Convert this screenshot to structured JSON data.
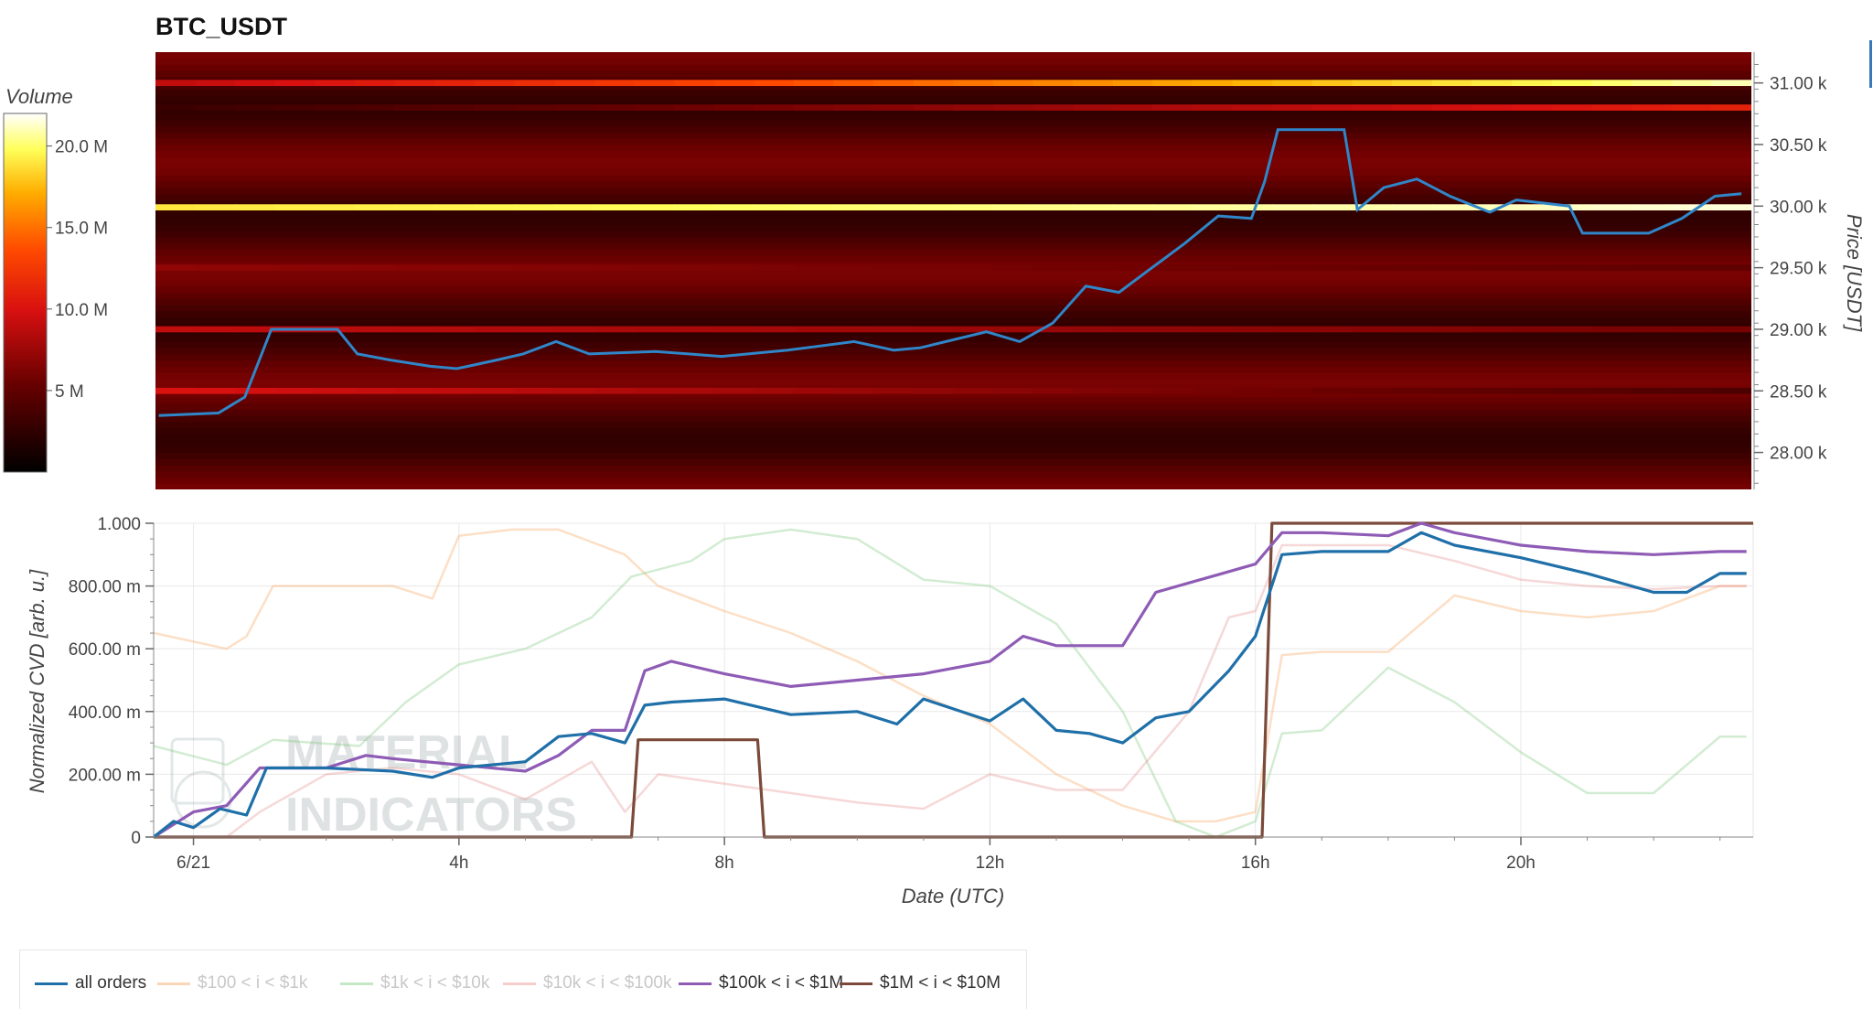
{
  "title": "BTC_USDT",
  "colorbar": {
    "title": "Volume",
    "ticks": [
      {
        "value": 20000000,
        "label": "20.0 M"
      },
      {
        "value": 15000000,
        "label": "15.0 M"
      },
      {
        "value": 10000000,
        "label": "10.0 M"
      },
      {
        "value": 5000000,
        "label": "5 M"
      }
    ],
    "range": [
      0,
      22000000
    ]
  },
  "heatmap_panel": {
    "y_axis_title": "Price [USDT]",
    "y_ticks": [
      {
        "value": 31000,
        "label": "31.00 k"
      },
      {
        "value": 30500,
        "label": "30.50 k"
      },
      {
        "value": 30000,
        "label": "30.00 k"
      },
      {
        "value": 29500,
        "label": "29.50 k"
      },
      {
        "value": 29000,
        "label": "29.00 k"
      },
      {
        "value": 28500,
        "label": "28.50 k"
      },
      {
        "value": 28000,
        "label": "28.00 k"
      }
    ],
    "y_range": [
      27700,
      31250
    ]
  },
  "cvd_panel": {
    "y_axis_title": "Normalized CVD [arb. u.]",
    "x_axis_title": "Date (UTC)",
    "y_ticks": [
      {
        "value": 1.0,
        "label": "1.000"
      },
      {
        "value": 0.8,
        "label": "800.00 m"
      },
      {
        "value": 0.6,
        "label": "600.00 m"
      },
      {
        "value": 0.4,
        "label": "400.00 m"
      },
      {
        "value": 0.2,
        "label": "200.00 m"
      },
      {
        "value": 0.0,
        "label": "0"
      }
    ],
    "x_ticks": [
      {
        "value": 0,
        "label": "6/21"
      },
      {
        "value": 4,
        "label": "4h"
      },
      {
        "value": 8,
        "label": "8h"
      },
      {
        "value": 12,
        "label": "12h"
      },
      {
        "value": 16,
        "label": "16h"
      },
      {
        "value": 20,
        "label": "20h"
      }
    ],
    "watermark_lines": [
      "MATERIAL",
      "INDICATORS"
    ]
  },
  "legend": [
    {
      "label": "all orders",
      "color": "#1f6fa8",
      "muted": false
    },
    {
      "label": "$100 < i < $1k",
      "color": "#f5a25d",
      "muted": true
    },
    {
      "label": "$1k < i < $10k",
      "color": "#7fc97f",
      "muted": true
    },
    {
      "label": "$10k < i < $100k",
      "color": "#e6908f",
      "muted": true
    },
    {
      "label": "$100k < i < $1M",
      "color": "#8e5bb5",
      "muted": false
    },
    {
      "label": "$1M < i < $10M",
      "color": "#7b4a3a",
      "muted": false
    }
  ],
  "chart_data": [
    {
      "type": "heatmap",
      "title": "BTC_USDT",
      "x_range_hours": [
        -0.55,
        23.55
      ],
      "y_range": [
        27700,
        31250
      ],
      "ylabel": "Price [USDT]",
      "colorscale": "black-red-yellow-white",
      "color_label": "Volume",
      "bands": [
        {
          "price": 31000,
          "volume_start": 9000000,
          "volume_end": 21000000
        },
        {
          "price": 29990,
          "volume_start": 19000000,
          "volume_end": 21500000
        },
        {
          "price": 30800,
          "volume_start": 3000000,
          "volume_end": 11000000
        },
        {
          "price": 29000,
          "volume_start": 9000000,
          "volume_end": 6000000
        },
        {
          "price": 28500,
          "volume_start": 10000000,
          "volume_end": 4000000
        },
        {
          "price": 29500,
          "volume_start": 7000000,
          "volume_end": 5000000
        }
      ],
      "price_line": {
        "name": "",
        "x": [
          -0.5,
          0.4,
          0.8,
          1.2,
          2.2,
          2.5,
          3.0,
          3.6,
          4.0,
          4.6,
          5.0,
          5.5,
          6.0,
          7.0,
          8.0,
          9.0,
          10.0,
          10.6,
          11.0,
          12.0,
          12.5,
          13.0,
          13.5,
          14.0,
          14.5,
          15.0,
          15.5,
          16.0,
          16.2,
          16.4,
          17.4,
          17.6,
          18.0,
          18.5,
          19.0,
          19.6,
          20.0,
          20.8,
          21.0,
          22.0,
          22.5,
          23.0,
          23.4
        ],
        "y": [
          28300,
          28320,
          28450,
          29000,
          29000,
          28800,
          28750,
          28700,
          28680,
          28750,
          28800,
          28900,
          28800,
          28820,
          28780,
          28830,
          28900,
          28830,
          28850,
          28980,
          28900,
          29050,
          29350,
          29300,
          29500,
          29700,
          29920,
          29900,
          30200,
          30620,
          30620,
          29970,
          30150,
          30220,
          30080,
          29950,
          30050,
          30000,
          29780,
          29780,
          29900,
          30080,
          30100
        ]
      }
    },
    {
      "type": "line",
      "xlabel": "Date (UTC)",
      "ylabel": "Normalized CVD [arb. u.]",
      "ylim": [
        0,
        1.0
      ],
      "x_unit": "hours since 6/21 00:00 UTC",
      "series": [
        {
          "name": "all orders",
          "color": "#1f6fa8",
          "x": [
            -0.6,
            -0.3,
            0,
            0.4,
            0.8,
            1.1,
            2.0,
            3.0,
            3.6,
            4.0,
            5.0,
            5.5,
            6.0,
            6.5,
            6.8,
            7.2,
            8.0,
            9.0,
            10.0,
            10.6,
            11.0,
            12.0,
            12.5,
            13.0,
            13.5,
            14.0,
            14.5,
            15.0,
            15.6,
            16.0,
            16.4,
            17.0,
            18.0,
            18.5,
            19.0,
            20.0,
            21.0,
            22.0,
            22.5,
            23.0,
            23.4
          ],
          "values": [
            0.0,
            0.05,
            0.03,
            0.09,
            0.07,
            0.22,
            0.22,
            0.21,
            0.19,
            0.22,
            0.24,
            0.32,
            0.33,
            0.3,
            0.42,
            0.43,
            0.44,
            0.39,
            0.4,
            0.36,
            0.44,
            0.37,
            0.44,
            0.34,
            0.33,
            0.3,
            0.38,
            0.4,
            0.53,
            0.64,
            0.9,
            0.91,
            0.91,
            0.97,
            0.93,
            0.89,
            0.84,
            0.78,
            0.78,
            0.84,
            0.84
          ]
        },
        {
          "name": "$100 < i < $1k",
          "color": "#f5a25d",
          "x": [
            -0.6,
            0.5,
            0.8,
            1.2,
            3.0,
            3.6,
            4.0,
            4.8,
            5.5,
            6.5,
            7.0,
            8.0,
            9.0,
            10.0,
            11.0,
            12.0,
            13.0,
            14.0,
            14.8,
            15.4,
            16.0,
            16.4,
            17.0,
            18.0,
            19.0,
            20.0,
            21.0,
            22.0,
            23.0,
            23.4
          ],
          "values": [
            0.65,
            0.6,
            0.64,
            0.8,
            0.8,
            0.76,
            0.96,
            0.98,
            0.98,
            0.9,
            0.8,
            0.72,
            0.65,
            0.56,
            0.45,
            0.36,
            0.2,
            0.1,
            0.05,
            0.05,
            0.08,
            0.58,
            0.59,
            0.59,
            0.77,
            0.72,
            0.7,
            0.72,
            0.8,
            0.8
          ]
        },
        {
          "name": "$1k < i < $10k",
          "color": "#7fc97f",
          "x": [
            -0.6,
            0.5,
            1.2,
            2.5,
            3.2,
            4.0,
            5.0,
            6.0,
            6.6,
            7.5,
            8.0,
            9.0,
            10.0,
            11.0,
            12.0,
            13.0,
            14.0,
            14.8,
            15.4,
            16.0,
            16.4,
            17.0,
            18.0,
            19.0,
            20.0,
            21.0,
            22.0,
            23.0,
            23.4
          ],
          "values": [
            0.29,
            0.23,
            0.31,
            0.29,
            0.43,
            0.55,
            0.6,
            0.7,
            0.83,
            0.88,
            0.95,
            0.98,
            0.95,
            0.82,
            0.8,
            0.68,
            0.4,
            0.05,
            0.0,
            0.05,
            0.33,
            0.34,
            0.54,
            0.43,
            0.27,
            0.14,
            0.14,
            0.32,
            0.32
          ]
        },
        {
          "name": "$10k < i < $100k",
          "color": "#e6908f",
          "x": [
            -0.6,
            0.5,
            1.0,
            2.0,
            3.0,
            4.0,
            5.0,
            5.5,
            6.0,
            6.5,
            7.0,
            8.0,
            9.0,
            10.0,
            11.0,
            12.0,
            13.0,
            14.0,
            15.0,
            15.6,
            16.0,
            16.4,
            17.0,
            18.0,
            19.0,
            20.0,
            21.0,
            22.0,
            23.0,
            23.4
          ],
          "values": [
            0.0,
            0.0,
            0.08,
            0.2,
            0.22,
            0.2,
            0.12,
            0.18,
            0.24,
            0.08,
            0.2,
            0.17,
            0.14,
            0.11,
            0.09,
            0.2,
            0.15,
            0.15,
            0.4,
            0.7,
            0.72,
            0.93,
            0.93,
            0.93,
            0.88,
            0.82,
            0.8,
            0.79,
            0.8,
            0.8
          ]
        },
        {
          "name": "$100k < i < $1M",
          "color": "#8e5bb5",
          "x": [
            -0.6,
            0.0,
            0.5,
            1.0,
            2.0,
            2.6,
            3.0,
            4.0,
            5.0,
            5.5,
            6.0,
            6.5,
            6.8,
            7.2,
            8.0,
            9.0,
            10.0,
            11.0,
            12.0,
            12.5,
            13.0,
            14.0,
            14.5,
            15.0,
            15.5,
            16.0,
            16.4,
            17.0,
            18.0,
            18.5,
            19.0,
            20.0,
            21.0,
            22.0,
            23.0,
            23.4
          ],
          "values": [
            0.0,
            0.08,
            0.1,
            0.22,
            0.22,
            0.26,
            0.25,
            0.23,
            0.21,
            0.26,
            0.34,
            0.34,
            0.53,
            0.56,
            0.52,
            0.48,
            0.5,
            0.52,
            0.56,
            0.64,
            0.61,
            0.61,
            0.78,
            0.81,
            0.84,
            0.87,
            0.97,
            0.97,
            0.96,
            1.0,
            0.97,
            0.93,
            0.91,
            0.9,
            0.91,
            0.91
          ]
        },
        {
          "name": "$1M < i < $10M",
          "color": "#7b4a3a",
          "x": [
            -0.6,
            6.6,
            6.7,
            8.5,
            8.6,
            16.1,
            16.25,
            23.5
          ],
          "values": [
            0.0,
            0.0,
            0.31,
            0.31,
            0.0,
            0.0,
            1.0,
            1.0
          ]
        }
      ]
    }
  ]
}
